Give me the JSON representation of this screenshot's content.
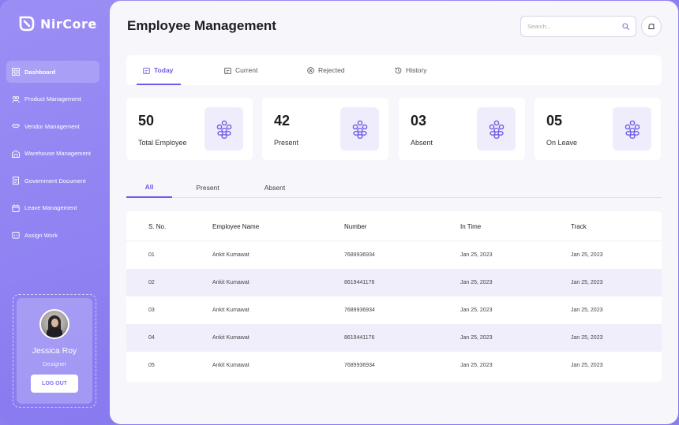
{
  "app": {
    "name": "NirCore"
  },
  "sidebar": {
    "items": [
      {
        "label": "Dashboard",
        "icon": "grid-icon"
      },
      {
        "label": "Product Management",
        "icon": "users-icon"
      },
      {
        "label": "Vendor Management",
        "icon": "handshake-icon"
      },
      {
        "label": "Warehouse Management",
        "icon": "warehouse-icon"
      },
      {
        "label": "Government Document",
        "icon": "document-icon"
      },
      {
        "label": "Leave Management",
        "icon": "calendar-icon"
      },
      {
        "label": "Assign Work",
        "icon": "task-icon"
      }
    ],
    "profile": {
      "name": "Jessica Roy",
      "role": "Designer",
      "logout_label": "LOG OUT"
    }
  },
  "header": {
    "title": "Employee Management",
    "search_placeholder": "Search..."
  },
  "tabs": [
    {
      "label": "Today",
      "icon": "calendar-icon"
    },
    {
      "label": "Current",
      "icon": "calendar-icon"
    },
    {
      "label": "Rejected",
      "icon": "reject-icon"
    },
    {
      "label": "History",
      "icon": "history-icon"
    }
  ],
  "stats": [
    {
      "value": "50",
      "label": "Total Employee"
    },
    {
      "value": "42",
      "label": "Present"
    },
    {
      "value": "03",
      "label": "Absent"
    },
    {
      "value": "05",
      "label": "On Leave"
    }
  ],
  "subtabs": [
    {
      "label": "All"
    },
    {
      "label": "Present"
    },
    {
      "label": "Absent"
    }
  ],
  "table": {
    "columns": [
      "S. No.",
      "Employee Name",
      "Number",
      "In Time",
      "Track"
    ],
    "rows": [
      [
        "01",
        "Ankit Kumawat",
        "7689936934",
        "Jan 25, 2023",
        "Jan 25, 2023"
      ],
      [
        "02",
        "Ankit Kumawat",
        "8619441176",
        "Jan 25, 2023",
        "Jan 25, 2023"
      ],
      [
        "03",
        "Ankit Kumawat",
        "7689936934",
        "Jan 25, 2023",
        "Jan 25, 2023"
      ],
      [
        "04",
        "Ankit Kumawat",
        "8619441176",
        "Jan 25, 2023",
        "Jan 25, 2023"
      ],
      [
        "05",
        "Ankit Kumawat",
        "7689936934",
        "Jan 25, 2023",
        "Jan 25, 2023"
      ]
    ]
  },
  "colors": {
    "accent": "#6c5ce7",
    "sidebar": "#8a7cf0",
    "row_alt": "#f0eefb"
  }
}
